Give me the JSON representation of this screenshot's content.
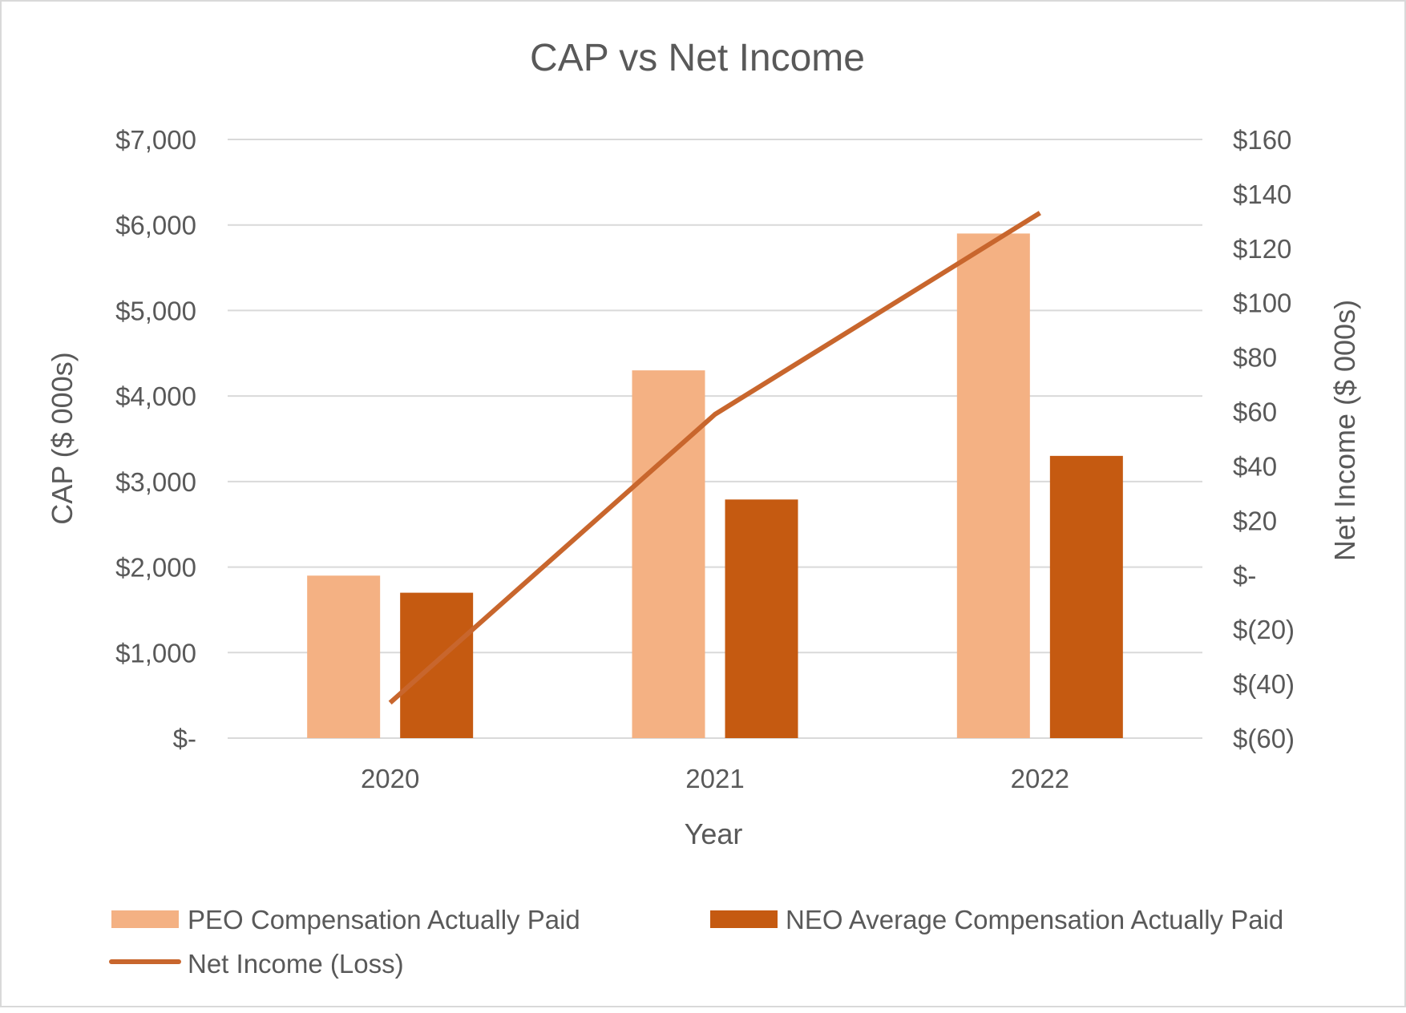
{
  "chart_data": {
    "type": "bar",
    "title": "CAP vs Net Income",
    "xlabel": "Year",
    "ylabel": "CAP ($ 000s)",
    "y2label": "Net Income ($ 000s)",
    "categories": [
      "2020",
      "2021",
      "2022"
    ],
    "ylim": [
      0,
      7000
    ],
    "y2lim": [
      -60,
      160
    ],
    "yticks": [
      0,
      1000,
      2000,
      3000,
      4000,
      5000,
      6000,
      7000
    ],
    "ytick_labels": [
      "$-",
      "$1,000",
      "$2,000",
      "$3,000",
      "$4,000",
      "$5,000",
      "$6,000",
      "$7,000"
    ],
    "y2ticks": [
      -60,
      -40,
      -20,
      0,
      20,
      40,
      60,
      80,
      100,
      120,
      140,
      160
    ],
    "y2tick_labels": [
      "$(60)",
      "$(40)",
      "$(20)",
      "$-",
      "$20",
      "$40",
      "$60",
      "$80",
      "$100",
      "$120",
      "$140",
      "$160"
    ],
    "grid": true,
    "legend_position": "bottom",
    "series": [
      {
        "name": "PEO Compensation Actually Paid",
        "type": "bar",
        "axis": "left",
        "color": "#F4B183",
        "values": [
          1900,
          4300,
          5900
        ]
      },
      {
        "name": "NEO Average Compensation Actually Paid",
        "type": "bar",
        "axis": "left",
        "color": "#C55A11",
        "values": [
          1700,
          2790,
          3300
        ]
      },
      {
        "name": "Net Income (Loss)",
        "type": "line",
        "axis": "right",
        "color": "#C8662D",
        "values": [
          -47,
          59,
          133
        ]
      }
    ]
  }
}
